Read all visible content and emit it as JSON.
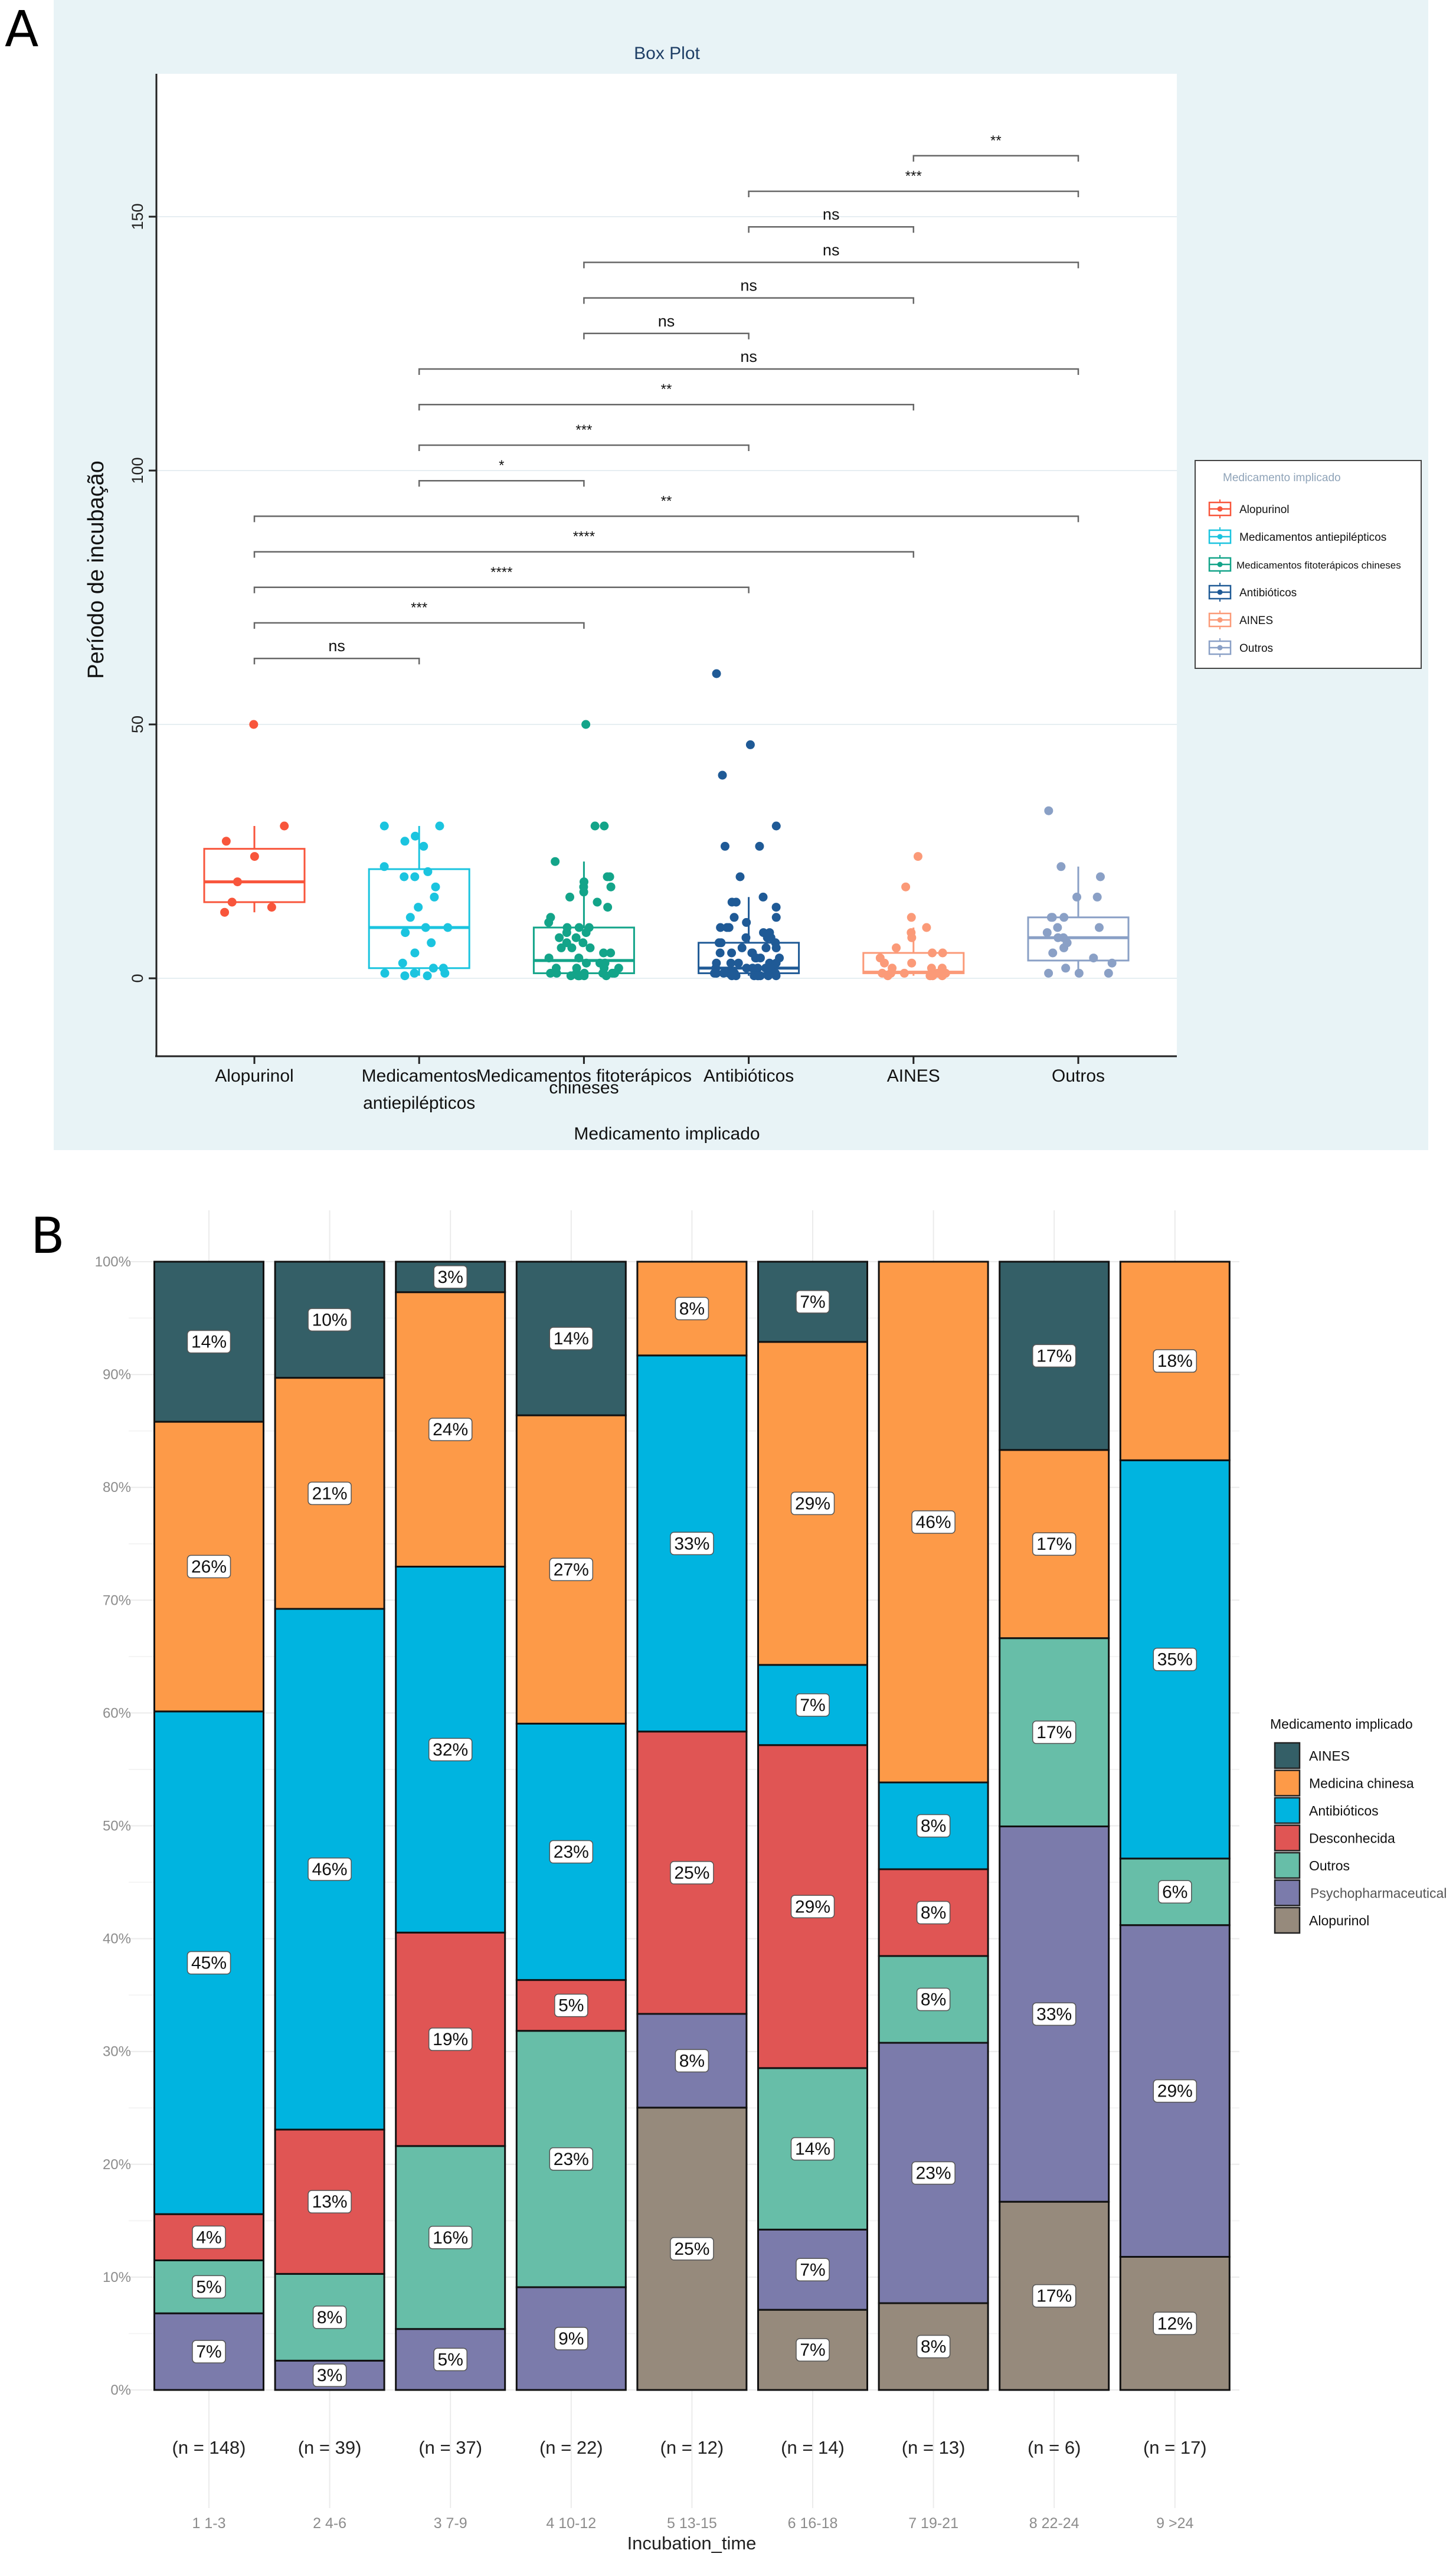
{
  "panels": {
    "A": {
      "letter": "A"
    },
    "B": {
      "letter": "B"
    }
  },
  "chart_data": [
    {
      "id": "A",
      "type": "box",
      "title": "Box Plot",
      "xlabel": "Medicamento implicado",
      "ylabel": "Período de incubação",
      "ylim": [
        -15,
        180
      ],
      "yticks": [
        0,
        50,
        100,
        150
      ],
      "grid": "horizontal",
      "legend": {
        "title": "Medicamento implicado",
        "placement": "right",
        "items": [
          "Alopurinol",
          "Medicamentos antiepilépticos",
          "Medicamentos fitoterápicos chineses",
          "Antibióticos",
          "AINES",
          "Outros"
        ]
      },
      "categories": [
        {
          "label_lines": [
            "Alopurinol"
          ],
          "name": "Alopurinol",
          "color": "#f8553b",
          "q1": 15,
          "median": 19,
          "q3": 25.5,
          "whisker_low": 13,
          "whisker_high": 30,
          "points": [
            50,
            30,
            27,
            24,
            19,
            15,
            14,
            13
          ]
        },
        {
          "label_lines": [
            "Medicamentos",
            "",
            "antiepilépticos"
          ],
          "name": "Medicamentos antiepilépticos",
          "color": "#1bc4df",
          "q1": 2,
          "median": 10,
          "q3": 21.5,
          "whisker_low": 0.5,
          "whisker_high": 30,
          "points": [
            30,
            30,
            28,
            27,
            26,
            22,
            21,
            20,
            20,
            18,
            16,
            14,
            12,
            10,
            10,
            9,
            7,
            5,
            3,
            2,
            2,
            1,
            1,
            1,
            0.5,
            0.5
          ]
        },
        {
          "label_lines": [
            "Medicamentos fitoterápicos",
            "chineses"
          ],
          "name": "Medicamentos fitoterápicos chineses",
          "color": "#13a489",
          "q1": 1,
          "median": 3.5,
          "q3": 10,
          "whisker_low": 0.5,
          "whisker_high": 23,
          "points": [
            50,
            30,
            30,
            23,
            20,
            20,
            19,
            18,
            18,
            17,
            16,
            15,
            14,
            12,
            11,
            10,
            10,
            10,
            9,
            9,
            8,
            8,
            7,
            7,
            6,
            6,
            6,
            5,
            5,
            4,
            4,
            3,
            3,
            3,
            2,
            2,
            2,
            2,
            1,
            1,
            1,
            1,
            1,
            1,
            1,
            1,
            0.5,
            0.5,
            0.5,
            0.5,
            0.5,
            0.5
          ]
        },
        {
          "label_lines": [
            "Antibióticos"
          ],
          "name": "Antibióticos",
          "color": "#1f5a96",
          "q1": 1,
          "median": 2,
          "q3": 7,
          "whisker_low": 0.5,
          "whisker_high": 16,
          "points": [
            60,
            46,
            40,
            30,
            26,
            26,
            20,
            16,
            15,
            15,
            14,
            12,
            12,
            11,
            10,
            10,
            10,
            9,
            9,
            8,
            8,
            8,
            7,
            7,
            7,
            6,
            6,
            6,
            5,
            5,
            5,
            5,
            4,
            4,
            4,
            4,
            3,
            3,
            3,
            3,
            3,
            2,
            2,
            2,
            2,
            2,
            2,
            2,
            1,
            1,
            1,
            1,
            1,
            1,
            1,
            1,
            1,
            1,
            0.5,
            0.5,
            0.5,
            0.5,
            0.5,
            0.5,
            0.5,
            0.5
          ]
        },
        {
          "label_lines": [
            "AINES"
          ],
          "name": "AINES",
          "color": "#fb9a78",
          "q1": 1,
          "median": 1.2,
          "q3": 5,
          "whisker_low": 0.5,
          "whisker_high": 10,
          "points": [
            24,
            18,
            12,
            10,
            9,
            8,
            6,
            5,
            5,
            4,
            3,
            3,
            2,
            2,
            2,
            1,
            1,
            1,
            1,
            1,
            0.5,
            0.5,
            0.5,
            0.5
          ]
        },
        {
          "label_lines": [
            "Outros"
          ],
          "name": "Outros",
          "color": "#8aa0c6",
          "q1": 3.5,
          "median": 8,
          "q3": 12,
          "whisker_low": 1,
          "whisker_high": 22,
          "points": [
            33,
            22,
            20,
            16,
            16,
            12,
            12,
            12,
            10,
            10,
            9,
            8,
            8,
            7,
            6,
            5,
            4,
            3,
            2,
            1,
            1,
            1
          ]
        }
      ],
      "comparisons": [
        {
          "a": 4,
          "b": 5,
          "y": 162,
          "label": "**"
        },
        {
          "a": 3,
          "b": 5,
          "y": 155,
          "label": "***"
        },
        {
          "a": 3,
          "b": 4,
          "y": 148,
          "label": "ns"
        },
        {
          "a": 2,
          "b": 5,
          "y": 141,
          "label": "ns"
        },
        {
          "a": 2,
          "b": 4,
          "y": 134,
          "label": "ns"
        },
        {
          "a": 2,
          "b": 3,
          "y": 127,
          "label": "ns"
        },
        {
          "a": 1,
          "b": 5,
          "y": 120,
          "label": "ns"
        },
        {
          "a": 1,
          "b": 4,
          "y": 113,
          "label": "**"
        },
        {
          "a": 1,
          "b": 3,
          "y": 105,
          "label": "***"
        },
        {
          "a": 1,
          "b": 2,
          "y": 98,
          "label": "*"
        },
        {
          "a": 0,
          "b": 5,
          "y": 91,
          "label": "**"
        },
        {
          "a": 0,
          "b": 4,
          "y": 84,
          "label": "****"
        },
        {
          "a": 0,
          "b": 3,
          "y": 77,
          "label": "****"
        },
        {
          "a": 0,
          "b": 2,
          "y": 70,
          "label": "***"
        },
        {
          "a": 0,
          "b": 1,
          "y": 63,
          "label": "ns"
        }
      ]
    },
    {
      "id": "B",
      "type": "bar",
      "stacked": "percent",
      "xlabel": "Incubation_time",
      "ylabel": "",
      "ylim": [
        0,
        100
      ],
      "yticks": [
        "0%",
        "10%",
        "20%",
        "30%",
        "40%",
        "50%",
        "60%",
        "70%",
        "80%",
        "90%",
        "100%"
      ],
      "grid": "on",
      "legend": {
        "title": "Medicamento implicado",
        "placement": "right"
      },
      "series": [
        {
          "name": "Alopurinol",
          "color": "#968a7c"
        },
        {
          "name": "Psychopharmaceutical",
          "color": "#7b7bab"
        },
        {
          "name": "Outros",
          "color": "#67bea8"
        },
        {
          "name": "Desconhecida",
          "color": "#e05554"
        },
        {
          "name": "Antibióticos",
          "color": "#00b4e0"
        },
        {
          "name": "Medicina chinesa",
          "color": "#fd9a48"
        },
        {
          "name": "AINES",
          "color": "#345f67"
        }
      ],
      "legend_order": [
        "AINES",
        "Medicina chinesa",
        "Antibióticos",
        "Desconhecida",
        "Outros",
        "Psychopharmaceutical",
        "Alopurinol"
      ],
      "categories": [
        {
          "label": "1 1-3",
          "n_label": "(n = 148)",
          "segments": [
            {
              "series": "Psychopharmaceutical",
              "value": 6.8,
              "label": "7%"
            },
            {
              "series": "Outros",
              "value": 4.7,
              "label": "5%"
            },
            {
              "series": "Desconhecida",
              "value": 4.1,
              "label": "4%"
            },
            {
              "series": "Antibióticos",
              "value": 44.6,
              "label": "45%"
            },
            {
              "series": "Medicina chinesa",
              "value": 25.7,
              "label": "26%"
            },
            {
              "series": "AINES",
              "value": 14.2,
              "label": "14%"
            }
          ]
        },
        {
          "label": "2 4-6",
          "n_label": "(n = 39)",
          "segments": [
            {
              "series": "Psychopharmaceutical",
              "value": 2.6,
              "label": "3%"
            },
            {
              "series": "Outros",
              "value": 7.7,
              "label": "8%"
            },
            {
              "series": "Desconhecida",
              "value": 12.8,
              "label": "13%"
            },
            {
              "series": "Antibióticos",
              "value": 46.2,
              "label": "46%"
            },
            {
              "series": "Medicina chinesa",
              "value": 20.5,
              "label": "21%"
            },
            {
              "series": "AINES",
              "value": 10.3,
              "label": "10%"
            }
          ]
        },
        {
          "label": "3 7-9",
          "n_label": "(n = 37)",
          "segments": [
            {
              "series": "Psychopharmaceutical",
              "value": 5.4,
              "label": "5%"
            },
            {
              "series": "Outros",
              "value": 16.2,
              "label": "16%"
            },
            {
              "series": "Desconhecida",
              "value": 18.9,
              "label": "19%"
            },
            {
              "series": "Antibióticos",
              "value": 32.4,
              "label": "32%"
            },
            {
              "series": "Medicina chinesa",
              "value": 24.3,
              "label": "24%"
            },
            {
              "series": "AINES",
              "value": 2.7,
              "label": "3%"
            }
          ]
        },
        {
          "label": "4 10-12",
          "n_label": "(n = 22)",
          "segments": [
            {
              "series": "Psychopharmaceutical",
              "value": 9.1,
              "label": "9%"
            },
            {
              "series": "Outros",
              "value": 22.7,
              "label": "23%"
            },
            {
              "series": "Desconhecida",
              "value": 4.5,
              "label": "5%"
            },
            {
              "series": "Antibióticos",
              "value": 22.7,
              "label": "23%"
            },
            {
              "series": "Medicina chinesa",
              "value": 27.3,
              "label": "27%"
            },
            {
              "series": "AINES",
              "value": 13.6,
              "label": "14%"
            }
          ]
        },
        {
          "label": "5 13-15",
          "n_label": "(n = 12)",
          "segments": [
            {
              "series": "Alopurinol",
              "value": 25.0,
              "label": "25%"
            },
            {
              "series": "Psychopharmaceutical",
              "value": 8.3,
              "label": "8%"
            },
            {
              "series": "Desconhecida",
              "value": 25.0,
              "label": "25%"
            },
            {
              "series": "Antibióticos",
              "value": 33.3,
              "label": "33%"
            },
            {
              "series": "Medicina chinesa",
              "value": 8.3,
              "label": "8%"
            }
          ]
        },
        {
          "label": "6 16-18",
          "n_label": "(n = 14)",
          "segments": [
            {
              "series": "Alopurinol",
              "value": 7.1,
              "label": "7%"
            },
            {
              "series": "Psychopharmaceutical",
              "value": 7.1,
              "label": "7%"
            },
            {
              "series": "Outros",
              "value": 14.3,
              "label": "14%"
            },
            {
              "series": "Desconhecida",
              "value": 28.6,
              "label": "29%"
            },
            {
              "series": "Antibióticos",
              "value": 7.1,
              "label": "7%"
            },
            {
              "series": "Medicina chinesa",
              "value": 28.6,
              "label": "29%"
            },
            {
              "series": "AINES",
              "value": 7.1,
              "label": "7%"
            }
          ]
        },
        {
          "label": "7 19-21",
          "n_label": "(n = 13)",
          "segments": [
            {
              "series": "Alopurinol",
              "value": 7.7,
              "label": "8%"
            },
            {
              "series": "Psychopharmaceutical",
              "value": 23.1,
              "label": "23%"
            },
            {
              "series": "Outros",
              "value": 7.7,
              "label": "8%"
            },
            {
              "series": "Desconhecida",
              "value": 7.7,
              "label": "8%"
            },
            {
              "series": "Antibióticos",
              "value": 7.7,
              "label": "8%"
            },
            {
              "series": "Medicina chinesa",
              "value": 46.2,
              "label": "46%"
            }
          ]
        },
        {
          "label": "8 22-24",
          "n_label": "(n = 6)",
          "segments": [
            {
              "series": "Alopurinol",
              "value": 16.7,
              "label": "17%"
            },
            {
              "series": "Psychopharmaceutical",
              "value": 33.3,
              "label": "33%"
            },
            {
              "series": "Outros",
              "value": 16.7,
              "label": "17%"
            },
            {
              "series": "Medicina chinesa",
              "value": 16.7,
              "label": "17%"
            },
            {
              "series": "AINES",
              "value": 16.7,
              "label": "17%"
            }
          ]
        },
        {
          "label": "9 >24",
          "n_label": "(n = 17)",
          "segments": [
            {
              "series": "Alopurinol",
              "value": 11.8,
              "label": "12%"
            },
            {
              "series": "Psychopharmaceutical",
              "value": 29.4,
              "label": "29%"
            },
            {
              "series": "Outros",
              "value": 5.9,
              "label": "6%"
            },
            {
              "series": "Antibióticos",
              "value": 35.3,
              "label": "35%"
            },
            {
              "series": "Medicina chinesa",
              "value": 17.6,
              "label": "18%"
            }
          ]
        }
      ]
    }
  ]
}
